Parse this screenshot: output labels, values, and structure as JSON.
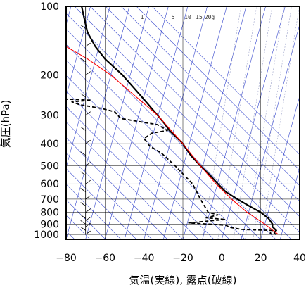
{
  "chart_data": {
    "type": "line",
    "subtype": "skew-T log-P diagram",
    "xlabel": "気温(実線), 露点(破線)",
    "ylabel": "気圧(hPa)",
    "xlim": [
      -80,
      40
    ],
    "ylim": [
      1050,
      100
    ],
    "y_scale": "log",
    "x_ticks": [
      -80,
      -60,
      -40,
      -20,
      0,
      20,
      40
    ],
    "x_tick_labels": [
      "−80",
      "−60",
      "−40",
      "−20",
      "0",
      "20",
      "40"
    ],
    "y_ticks": [
      100,
      200,
      300,
      400,
      500,
      600,
      700,
      800,
      900,
      1000
    ],
    "y_tick_labels": [
      "100",
      "200",
      "300",
      "400",
      "500",
      "600",
      "700",
      "800",
      "900",
      "1000"
    ],
    "mixing_ratio_labels": [
      "1",
      "5",
      "10",
      "15",
      "20g"
    ],
    "colors": {
      "temperature": "#000000",
      "dewpoint": "#000000",
      "parcel": "#ff0000",
      "isotherm": "#3344cc",
      "dry_adiabat": "#3344cc",
      "mixing_ratio": "#9aa0c8",
      "grid": "#000000"
    },
    "series": [
      {
        "style": "solid",
        "points": [
          {
            "p": 1000,
            "x": 28
          },
          {
            "p": 990,
            "x": 27
          },
          {
            "p": 975,
            "x": 27
          },
          {
            "p": 960,
            "x": 28
          },
          {
            "p": 925,
            "x": 26
          },
          {
            "p": 900,
            "x": 26
          },
          {
            "p": 850,
            "x": 24
          },
          {
            "p": 800,
            "x": 20
          },
          {
            "p": 750,
            "x": 14
          },
          {
            "p": 700,
            "x": 8
          },
          {
            "p": 650,
            "x": 2
          },
          {
            "p": 600,
            "x": -2
          },
          {
            "p": 550,
            "x": -6
          },
          {
            "p": 500,
            "x": -11
          },
          {
            "p": 450,
            "x": -16
          },
          {
            "p": 400,
            "x": -20
          },
          {
            "p": 370,
            "x": -24
          },
          {
            "p": 350,
            "x": -27
          },
          {
            "p": 330,
            "x": -29
          },
          {
            "p": 300,
            "x": -33
          },
          {
            "p": 250,
            "x": -41
          },
          {
            "p": 200,
            "x": -51
          },
          {
            "p": 170,
            "x": -60
          },
          {
            "p": 150,
            "x": -65
          },
          {
            "p": 130,
            "x": -69
          },
          {
            "p": 120,
            "x": -70
          },
          {
            "p": 110,
            "x": -71
          },
          {
            "p": 100,
            "x": -72
          }
        ]
      },
      {
        "style": "dashed",
        "points": [
          {
            "p": 1000,
            "x": 26
          },
          {
            "p": 990,
            "x": 25
          },
          {
            "p": 975,
            "x": 25
          },
          {
            "p": 960,
            "x": 26
          },
          {
            "p": 950,
            "x": 10
          },
          {
            "p": 930,
            "x": 4
          },
          {
            "p": 910,
            "x": 2
          },
          {
            "p": 890,
            "x": -17
          },
          {
            "p": 870,
            "x": -5
          },
          {
            "p": 860,
            "x": 2
          },
          {
            "p": 845,
            "x": -8
          },
          {
            "p": 820,
            "x": -2
          },
          {
            "p": 800,
            "x": -7
          },
          {
            "p": 700,
            "x": -11
          },
          {
            "p": 600,
            "x": -15
          },
          {
            "p": 500,
            "x": -24
          },
          {
            "p": 440,
            "x": -31
          },
          {
            "p": 410,
            "x": -37
          },
          {
            "p": 380,
            "x": -40
          },
          {
            "p": 360,
            "x": -36
          },
          {
            "p": 350,
            "x": -28
          },
          {
            "p": 330,
            "x": -33
          },
          {
            "p": 310,
            "x": -52
          },
          {
            "p": 290,
            "x": -55
          },
          {
            "p": 280,
            "x": -62
          },
          {
            "p": 270,
            "x": -73
          },
          {
            "p": 262,
            "x": -77
          },
          {
            "p": 258,
            "x": -67
          },
          {
            "p": 255,
            "x": -80
          }
        ]
      },
      {
        "style": "solid",
        "points": [
          {
            "p": 1000,
            "x": 29
          },
          {
            "p": 900,
            "x": 22
          },
          {
            "p": 800,
            "x": 13
          },
          {
            "p": 700,
            "x": 5
          },
          {
            "p": 600,
            "x": -3
          },
          {
            "p": 500,
            "x": -11
          },
          {
            "p": 400,
            "x": -20
          },
          {
            "p": 300,
            "x": -33
          },
          {
            "p": 200,
            "x": -57
          },
          {
            "p": 170,
            "x": -69
          },
          {
            "p": 150,
            "x": -80
          }
        ]
      }
    ],
    "wind_barbs_x": -70,
    "wind_barbs_pressures": [
      1000,
      960,
      925,
      900,
      870,
      850,
      800,
      750,
      700,
      650,
      600,
      550,
      500,
      450,
      400,
      350,
      300,
      250,
      200,
      175,
      150,
      125,
      100
    ]
  }
}
